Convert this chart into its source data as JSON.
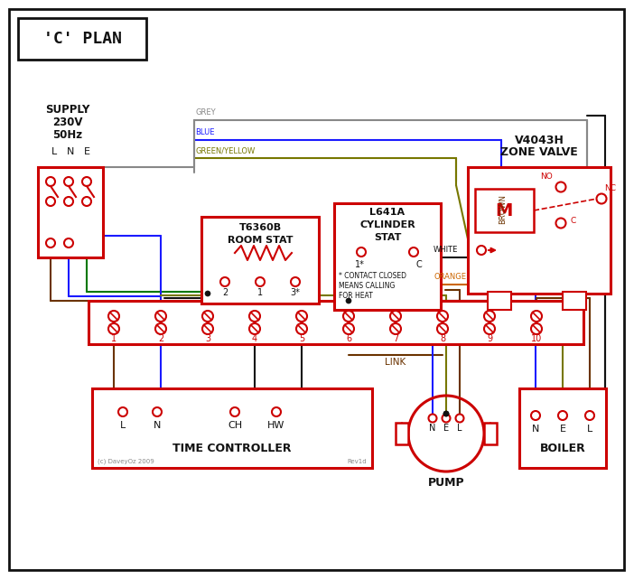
{
  "title": "'C' PLAN",
  "bg": "#ffffff",
  "red": "#cc0000",
  "blue": "#1a1aff",
  "green": "#007700",
  "grey": "#888888",
  "brown": "#6b3300",
  "orange": "#cc6600",
  "black": "#111111",
  "gy": "#777700",
  "lw": 1.5,
  "lbx": 2.2,
  "supply_text": [
    "SUPPLY",
    "230V",
    "50Hz"
  ],
  "lne": [
    "L",
    "N",
    "E"
  ],
  "zone_title": [
    "V4043H",
    "ZONE VALVE"
  ],
  "rs_title": [
    "T6360B",
    "ROOM STAT"
  ],
  "cs_title": [
    "L641A",
    "CYLINDER",
    "STAT"
  ],
  "tc_title": "TIME CONTROLLER",
  "pump_title": "PUMP",
  "boiler_title": "BOILER",
  "tc_terms": [
    "L",
    "N",
    "CH",
    "HW"
  ],
  "term_nums": [
    "1",
    "2",
    "3",
    "4",
    "5",
    "6",
    "7",
    "8",
    "9",
    "10"
  ],
  "bne": [
    "N",
    "E",
    "L"
  ],
  "contact_note": [
    "* CONTACT CLOSED",
    "MEANS CALLING",
    "FOR HEAT"
  ],
  "zv_labels": [
    "NO",
    "NC",
    "C"
  ],
  "wire_labels": [
    "GREY",
    "BLUE",
    "GREEN/YELLOW"
  ]
}
